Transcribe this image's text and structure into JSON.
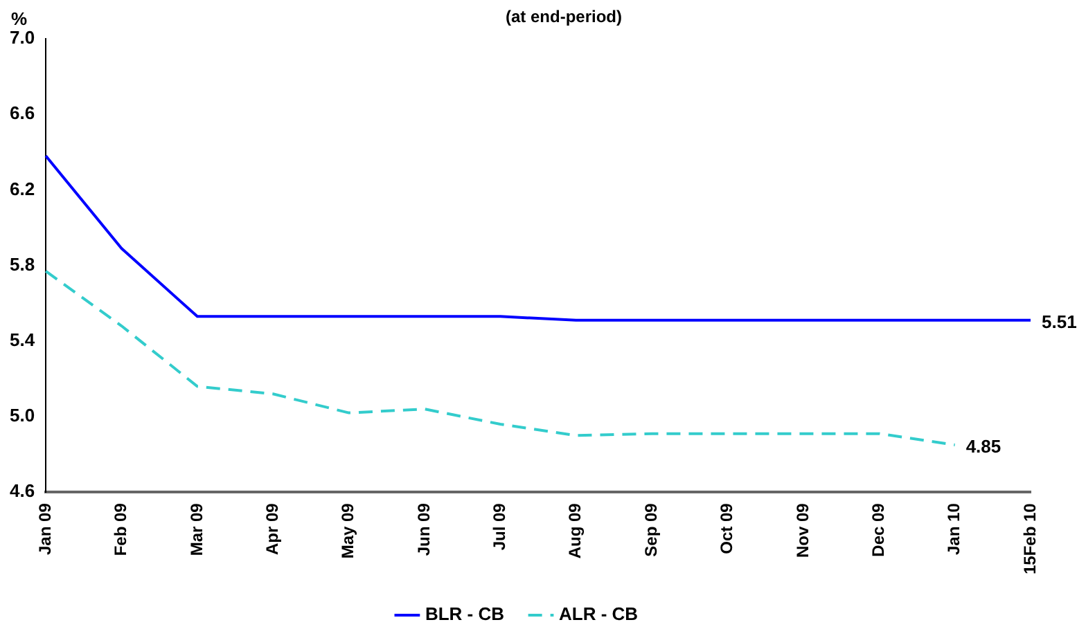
{
  "chart_data": {
    "type": "line",
    "subtitle": "(at end-period)",
    "ylabel": "%",
    "categories": [
      "Jan 09",
      "Feb 09",
      "Mar 09",
      "Apr 09",
      "May 09",
      "Jun 09",
      "Jul 09",
      "Aug 09",
      "Sep 09",
      "Oct 09",
      "Nov 09",
      "Dec 09",
      "Jan 10",
      "15Feb 10"
    ],
    "series": [
      {
        "name": "BLR - CB",
        "color": "#0000ff",
        "line_style": "solid",
        "values": [
          6.38,
          5.89,
          5.53,
          5.53,
          5.53,
          5.53,
          5.53,
          5.51,
          5.51,
          5.51,
          5.51,
          5.51,
          5.51,
          5.51
        ],
        "value_labels": [
          null,
          null,
          null,
          null,
          null,
          null,
          null,
          null,
          null,
          null,
          null,
          null,
          null,
          "5.51"
        ]
      },
      {
        "name": "ALR - CB",
        "color": "#33cccc",
        "line_style": "dashed",
        "values": [
          5.77,
          5.48,
          5.16,
          5.12,
          5.02,
          5.04,
          4.96,
          4.9,
          4.91,
          4.91,
          4.91,
          4.91,
          4.85,
          null
        ],
        "value_labels": [
          null,
          null,
          null,
          null,
          null,
          null,
          null,
          null,
          null,
          null,
          null,
          null,
          "4.85",
          null
        ]
      }
    ],
    "ylim": [
      4.6,
      7.0
    ],
    "yticks": [
      {
        "value": 4.6,
        "label": "4.6"
      },
      {
        "value": 5.0,
        "label": "5.0"
      },
      {
        "value": 5.4,
        "label": "5.4"
      },
      {
        "value": 5.8,
        "label": "5.8"
      },
      {
        "value": 6.2,
        "label": "6.2"
      },
      {
        "value": 6.6,
        "label": "6.6"
      },
      {
        "value": 7.0,
        "label": "7.0"
      }
    ],
    "grid": false,
    "legend": "bottom",
    "marker": "none"
  }
}
